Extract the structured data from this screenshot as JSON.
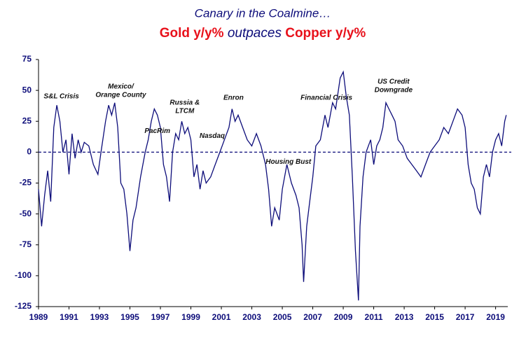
{
  "chart_data": {
    "type": "line",
    "title": "Canary in the Coalmine…",
    "subtitle": [
      {
        "text": "Gold y/y%",
        "color": "#e8111b",
        "weight": "bold",
        "style": "normal"
      },
      {
        "text": " outpaces ",
        "color": "#0d0d7a",
        "weight": "normal",
        "style": "italic"
      },
      {
        "text": "Copper y/y%",
        "color": "#e8111b",
        "weight": "bold",
        "style": "normal"
      }
    ],
    "xlim": [
      1989,
      2019.8
    ],
    "xticks": [
      1989,
      1991,
      1993,
      1995,
      1997,
      1999,
      2001,
      2003,
      2005,
      2007,
      2009,
      2011,
      2013,
      2015,
      2017,
      2019
    ],
    "ylim": [
      -125,
      75
    ],
    "yticks": [
      -125,
      -100,
      -75,
      -50,
      -25,
      0,
      25,
      50,
      75
    ],
    "reference_line": 0,
    "series": [
      {
        "color": "#0d0d7a",
        "x": [
          1989.0,
          1989.2,
          1989.4,
          1989.6,
          1989.8,
          1990.0,
          1990.2,
          1990.4,
          1990.6,
          1990.8,
          1991.0,
          1991.2,
          1991.4,
          1991.6,
          1991.8,
          1992.0,
          1992.3,
          1992.6,
          1992.9,
          1993.1,
          1993.4,
          1993.6,
          1993.8,
          1994.0,
          1994.2,
          1994.4,
          1994.6,
          1994.8,
          1995.0,
          1995.2,
          1995.4,
          1995.7,
          1996.0,
          1996.2,
          1996.4,
          1996.6,
          1996.8,
          1997.0,
          1997.2,
          1997.4,
          1997.6,
          1997.8,
          1998.0,
          1998.2,
          1998.4,
          1998.6,
          1998.8,
          1999.0,
          1999.2,
          1999.4,
          1999.6,
          1999.8,
          2000.0,
          2000.3,
          2000.6,
          2000.9,
          2001.2,
          2001.5,
          2001.7,
          2001.9,
          2002.1,
          2002.4,
          2002.7,
          2003.0,
          2003.3,
          2003.6,
          2003.9,
          2004.1,
          2004.3,
          2004.5,
          2004.8,
          2005.0,
          2005.3,
          2005.6,
          2005.9,
          2006.1,
          2006.3,
          2006.4,
          2006.6,
          2006.8,
          2007.0,
          2007.2,
          2007.5,
          2007.8,
          2008.0,
          2008.3,
          2008.5,
          2008.8,
          2009.0,
          2009.2,
          2009.4,
          2009.6,
          2009.8,
          2010.0,
          2010.1,
          2010.3,
          2010.5,
          2010.8,
          2011.0,
          2011.2,
          2011.4,
          2011.6,
          2011.8,
          2012.0,
          2012.2,
          2012.4,
          2012.6,
          2012.9,
          2013.2,
          2013.5,
          2013.8,
          2014.1,
          2014.4,
          2014.7,
          2015.0,
          2015.3,
          2015.6,
          2015.9,
          2016.2,
          2016.5,
          2016.8,
          2017.0,
          2017.2,
          2017.4,
          2017.6,
          2017.8,
          2018.0,
          2018.2,
          2018.4,
          2018.6,
          2018.8,
          2019.0,
          2019.2,
          2019.4,
          2019.6,
          2019.7
        ],
        "values": [
          -30,
          -60,
          -35,
          -15,
          -40,
          20,
          38,
          25,
          0,
          10,
          -18,
          15,
          -5,
          10,
          0,
          8,
          5,
          -10,
          -18,
          0,
          25,
          38,
          30,
          40,
          20,
          -25,
          -30,
          -50,
          -80,
          -55,
          -45,
          -20,
          0,
          10,
          25,
          35,
          30,
          20,
          -10,
          -20,
          -40,
          0,
          15,
          10,
          25,
          15,
          20,
          10,
          -20,
          -10,
          -30,
          -15,
          -25,
          -20,
          -10,
          0,
          10,
          20,
          35,
          25,
          30,
          20,
          10,
          5,
          15,
          5,
          -10,
          -30,
          -60,
          -45,
          -55,
          -30,
          -10,
          -25,
          -35,
          -45,
          -75,
          -105,
          -60,
          -40,
          -20,
          5,
          10,
          30,
          20,
          40,
          35,
          60,
          65,
          45,
          30,
          -20,
          -80,
          -120,
          -60,
          -20,
          0,
          10,
          -10,
          5,
          10,
          20,
          40,
          35,
          30,
          25,
          10,
          5,
          -5,
          -10,
          -15,
          -20,
          -10,
          0,
          5,
          10,
          20,
          15,
          25,
          35,
          30,
          20,
          -10,
          -25,
          -30,
          -45,
          -50,
          -20,
          -10,
          -20,
          0,
          10,
          15,
          5,
          25,
          30
        ]
      }
    ],
    "annotations": [
      {
        "text": [
          "S&L Crisis"
        ],
        "x": 1990.5,
        "y": 45
      },
      {
        "text": [
          "Mexico/",
          "Orange County"
        ],
        "x": 1994.4,
        "y": 53
      },
      {
        "text": [
          "PacRim"
        ],
        "x": 1996.8,
        "y": 17
      },
      {
        "text": [
          "Russia &",
          "LTCM"
        ],
        "x": 1998.6,
        "y": 40
      },
      {
        "text": [
          "Nasdaq"
        ],
        "x": 2000.4,
        "y": 13
      },
      {
        "text": [
          "Enron"
        ],
        "x": 2001.8,
        "y": 44
      },
      {
        "text": [
          "Housing Bust"
        ],
        "x": 2005.4,
        "y": -8
      },
      {
        "text": [
          "Financial Crisis"
        ],
        "x": 2007.9,
        "y": 44
      },
      {
        "text": [
          "US Credit",
          "Downgrade"
        ],
        "x": 2012.3,
        "y": 57
      }
    ]
  }
}
